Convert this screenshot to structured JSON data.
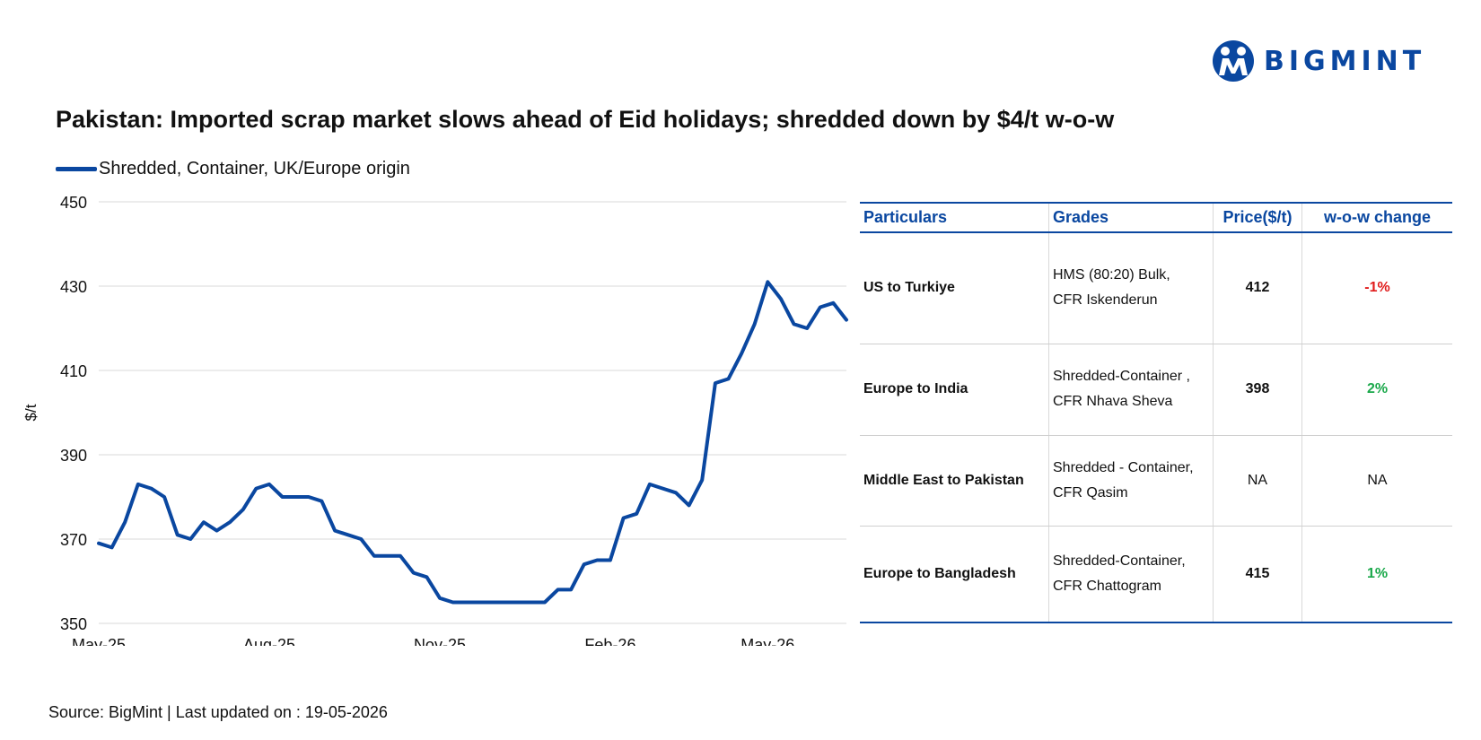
{
  "brand": {
    "name": "BIGMINT",
    "color": "#0a47a0"
  },
  "title": "Pakistan: Imported scrap market slows ahead of Eid holidays; shredded down by $4/t w-o-w",
  "source": "Source: BigMint | Last updated on : 19-05-2026",
  "chart_data": {
    "type": "line",
    "ylabel": "$/t",
    "xlabel": "",
    "ylim": [
      350,
      450
    ],
    "yticks": [
      350,
      370,
      390,
      410,
      430,
      450
    ],
    "grid": true,
    "legend_position": "top-left",
    "x_tick_labels": [
      "May-25",
      "Aug-25",
      "Nov-25",
      "Feb-26",
      "May-26"
    ],
    "x_tick_index": [
      0,
      13,
      26,
      39,
      51
    ],
    "series": [
      {
        "name": "Shredded, Container, UK/Europe origin",
        "color": "#0a47a0",
        "values": [
          369,
          368,
          374,
          383,
          382,
          380,
          371,
          370,
          374,
          372,
          374,
          377,
          382,
          383,
          380,
          380,
          380,
          379,
          372,
          371,
          370,
          366,
          366,
          366,
          362,
          361,
          356,
          355,
          355,
          355,
          355,
          355,
          355,
          355,
          355,
          358,
          358,
          364,
          365,
          365,
          375,
          376,
          383,
          382,
          381,
          378,
          384,
          407,
          408,
          414,
          421,
          431,
          427,
          421,
          420,
          425,
          426,
          422
        ]
      }
    ]
  },
  "table": {
    "headers": [
      "Particulars",
      "Grades",
      "Price($/t)",
      "w-o-w change"
    ],
    "rows": [
      {
        "particular": "US to Turkiye",
        "grade_line1": "HMS (80:20) Bulk,",
        "grade_line2": "CFR Iskenderun",
        "price": "412",
        "change": "-1%"
      },
      {
        "particular": "Europe to India",
        "grade_line1": "Shredded-Container ,",
        "grade_line2": "CFR Nhava Sheva",
        "price": "398",
        "change": "2%"
      },
      {
        "particular": "Middle East to Pakistan",
        "grade_line1": "Shredded - Container,",
        "grade_line2": "CFR Qasim",
        "price": "NA",
        "change": "NA"
      },
      {
        "particular": "Europe to Bangladesh",
        "grade_line1": "Shredded-Container,",
        "grade_line2": "CFR Chattogram",
        "price": "415",
        "change": "1%"
      }
    ],
    "change_colors": {
      "negative": "#e01b1b",
      "positive": "#1aa84a"
    }
  }
}
